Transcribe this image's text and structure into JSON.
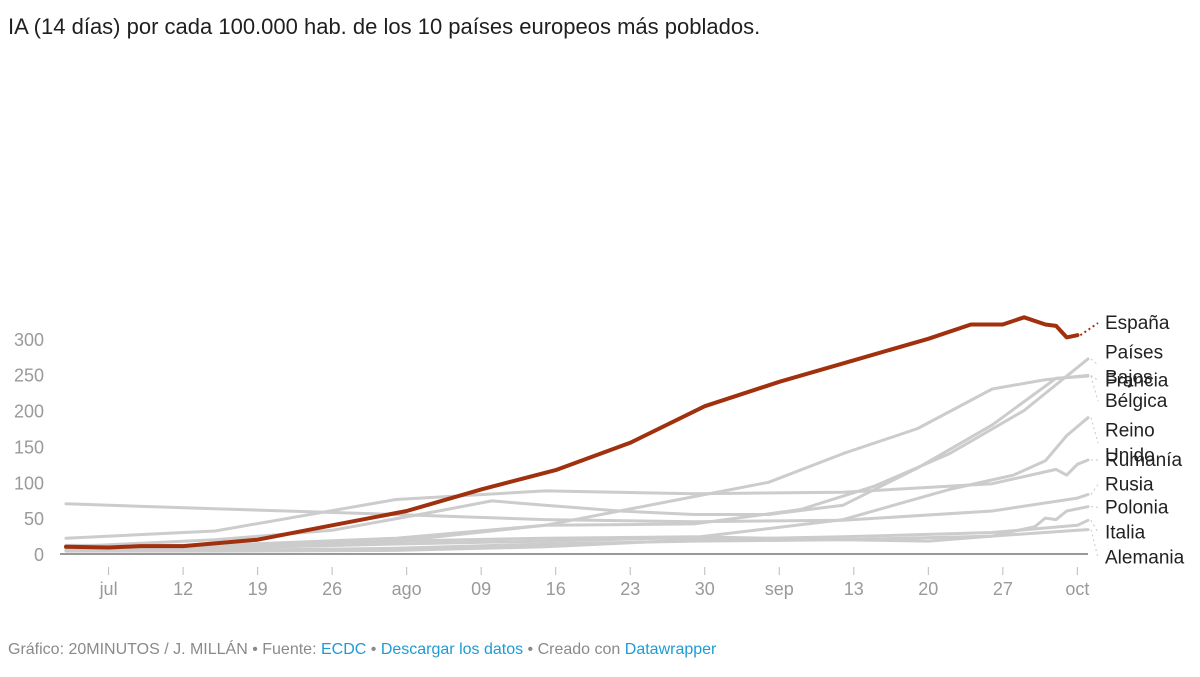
{
  "title": "IA (14 días) por cada 100.000 hab. de los 10 países europeos más poblados.",
  "footer": {
    "prefix": "Gráfico: 20MINUTOS / J. MILLÁN • Fuente: ",
    "source_link": "ECDC",
    "sep1": " • ",
    "download_link": "Descargar los datos",
    "sep2": " • Creado con ",
    "tool_link": "Datawrapper"
  },
  "colors": {
    "highlight": "#a0300e",
    "other": "#cccccc",
    "axis": "#9a9a9a",
    "link": "#1d9bd6"
  },
  "chart_data": {
    "type": "line",
    "title": "IA (14 días) por cada 100.000 hab. de los 10 países europeos más poblados.",
    "xlabel": "",
    "ylabel": "",
    "x_start": "2020-07-01",
    "x_end": "2020-10-05",
    "ylim": [
      0,
      330
    ],
    "yticks": [
      0,
      50,
      100,
      150,
      200,
      250,
      300
    ],
    "xticks": [
      {
        "date": "2020-07-05",
        "label": "jul"
      },
      {
        "date": "2020-07-12",
        "label": "12"
      },
      {
        "date": "2020-07-19",
        "label": "19"
      },
      {
        "date": "2020-07-26",
        "label": "26"
      },
      {
        "date": "2020-08-02",
        "label": "ago"
      },
      {
        "date": "2020-08-09",
        "label": "09"
      },
      {
        "date": "2020-08-16",
        "label": "16"
      },
      {
        "date": "2020-08-23",
        "label": "23"
      },
      {
        "date": "2020-08-30",
        "label": "30"
      },
      {
        "date": "2020-09-06",
        "label": "sep"
      },
      {
        "date": "2020-09-13",
        "label": "13"
      },
      {
        "date": "2020-09-20",
        "label": "20"
      },
      {
        "date": "2020-09-27",
        "label": "27"
      },
      {
        "date": "2020-10-04",
        "label": "oct"
      }
    ],
    "grid": false,
    "legend": "direct labels at right",
    "series": [
      {
        "name": "Alemania",
        "highlight": false,
        "points": [
          [
            "2020-07-01",
            6
          ],
          [
            "2020-07-15",
            5
          ],
          [
            "2020-08-01",
            8
          ],
          [
            "2020-08-15",
            14
          ],
          [
            "2020-08-29",
            18
          ],
          [
            "2020-09-12",
            20
          ],
          [
            "2020-09-26",
            25
          ],
          [
            "2020-10-04",
            33
          ],
          [
            "2020-10-05",
            34
          ]
        ]
      },
      {
        "name": "Italia",
        "highlight": false,
        "points": [
          [
            "2020-07-01",
            4
          ],
          [
            "2020-07-15",
            4
          ],
          [
            "2020-08-01",
            5
          ],
          [
            "2020-08-15",
            10
          ],
          [
            "2020-08-29",
            20
          ],
          [
            "2020-09-12",
            24
          ],
          [
            "2020-09-26",
            30
          ],
          [
            "2020-10-04",
            40
          ],
          [
            "2020-10-05",
            47
          ]
        ]
      },
      {
        "name": "Polonia",
        "highlight": false,
        "points": [
          [
            "2020-07-01",
            12
          ],
          [
            "2020-07-15",
            12
          ],
          [
            "2020-08-01",
            18
          ],
          [
            "2020-08-15",
            22
          ],
          [
            "2020-08-29",
            24
          ],
          [
            "2020-09-12",
            20
          ],
          [
            "2020-09-20",
            18
          ],
          [
            "2020-09-26",
            25
          ],
          [
            "2020-09-30",
            38
          ],
          [
            "2020-10-01",
            50
          ],
          [
            "2020-10-02",
            48
          ],
          [
            "2020-10-03",
            60
          ],
          [
            "2020-10-05",
            66
          ]
        ]
      },
      {
        "name": "Rusia",
        "highlight": false,
        "points": [
          [
            "2020-07-01",
            70
          ],
          [
            "2020-07-15",
            63
          ],
          [
            "2020-08-01",
            55
          ],
          [
            "2020-08-15",
            48
          ],
          [
            "2020-08-29",
            45
          ],
          [
            "2020-09-12",
            47
          ],
          [
            "2020-09-26",
            60
          ],
          [
            "2020-10-04",
            78
          ],
          [
            "2020-10-05",
            83
          ]
        ]
      },
      {
        "name": "Rumanía",
        "highlight": false,
        "points": [
          [
            "2020-07-01",
            22
          ],
          [
            "2020-07-15",
            32
          ],
          [
            "2020-08-01",
            76
          ],
          [
            "2020-08-15",
            88
          ],
          [
            "2020-08-29",
            84
          ],
          [
            "2020-09-12",
            86
          ],
          [
            "2020-09-26",
            98
          ],
          [
            "2020-10-02",
            118
          ],
          [
            "2020-10-03",
            110
          ],
          [
            "2020-10-04",
            125
          ],
          [
            "2020-10-05",
            131
          ]
        ]
      },
      {
        "name": "Reino Unido",
        "highlight": false,
        "points": [
          [
            "2020-07-01",
            10
          ],
          [
            "2020-07-15",
            8
          ],
          [
            "2020-08-01",
            14
          ],
          [
            "2020-08-15",
            18
          ],
          [
            "2020-08-29",
            23
          ],
          [
            "2020-09-12",
            48
          ],
          [
            "2020-09-22",
            90
          ],
          [
            "2020-09-28",
            110
          ],
          [
            "2020-10-01",
            130
          ],
          [
            "2020-10-03",
            165
          ],
          [
            "2020-10-05",
            190
          ]
        ]
      },
      {
        "name": "Bélgica",
        "highlight": false,
        "points": [
          [
            "2020-07-01",
            10
          ],
          [
            "2020-07-15",
            20
          ],
          [
            "2020-07-26",
            33
          ],
          [
            "2020-08-05",
            60
          ],
          [
            "2020-08-10",
            74
          ],
          [
            "2020-08-15",
            68
          ],
          [
            "2020-08-22",
            60
          ],
          [
            "2020-08-29",
            55
          ],
          [
            "2020-09-05",
            55
          ],
          [
            "2020-09-12",
            68
          ],
          [
            "2020-09-19",
            120
          ],
          [
            "2020-09-26",
            180
          ],
          [
            "2020-10-02",
            245
          ],
          [
            "2020-10-05",
            248
          ]
        ]
      },
      {
        "name": "Francia",
        "highlight": false,
        "points": [
          [
            "2020-07-01",
            6
          ],
          [
            "2020-07-15",
            10
          ],
          [
            "2020-08-01",
            18
          ],
          [
            "2020-08-15",
            40
          ],
          [
            "2020-08-29",
            80
          ],
          [
            "2020-09-05",
            100
          ],
          [
            "2020-09-12",
            140
          ],
          [
            "2020-09-19",
            175
          ],
          [
            "2020-09-26",
            230
          ],
          [
            "2020-10-01",
            243
          ],
          [
            "2020-10-05",
            249
          ]
        ]
      },
      {
        "name": "Países Bajos",
        "highlight": false,
        "points": [
          [
            "2020-07-01",
            6
          ],
          [
            "2020-07-15",
            12
          ],
          [
            "2020-08-01",
            22
          ],
          [
            "2020-08-15",
            40
          ],
          [
            "2020-08-29",
            42
          ],
          [
            "2020-09-08",
            62
          ],
          [
            "2020-09-15",
            95
          ],
          [
            "2020-09-22",
            140
          ],
          [
            "2020-09-29",
            200
          ],
          [
            "2020-10-05",
            272
          ]
        ]
      },
      {
        "name": "España",
        "highlight": true,
        "points": [
          [
            "2020-07-01",
            10
          ],
          [
            "2020-07-05",
            9
          ],
          [
            "2020-07-08",
            11
          ],
          [
            "2020-07-12",
            11
          ],
          [
            "2020-07-19",
            20
          ],
          [
            "2020-07-26",
            40
          ],
          [
            "2020-08-02",
            60
          ],
          [
            "2020-08-09",
            90
          ],
          [
            "2020-08-16",
            117
          ],
          [
            "2020-08-23",
            155
          ],
          [
            "2020-08-30",
            206
          ],
          [
            "2020-09-06",
            240
          ],
          [
            "2020-09-13",
            270
          ],
          [
            "2020-09-20",
            300
          ],
          [
            "2020-09-24",
            320
          ],
          [
            "2020-09-27",
            320
          ],
          [
            "2020-09-29",
            330
          ],
          [
            "2020-10-01",
            320
          ],
          [
            "2020-10-02",
            318
          ],
          [
            "2020-10-03",
            302
          ],
          [
            "2020-10-04",
            305
          ]
        ]
      }
    ],
    "end_labels": [
      {
        "series": "España",
        "lines": [
          "España"
        ],
        "y": 322
      },
      {
        "series": "Países Bajos",
        "lines": [
          "Países",
          "Bajos"
        ],
        "y": 281
      },
      {
        "series": "Francia",
        "lines": [
          "Francia"
        ],
        "y": 242
      },
      {
        "series": "Bélgica",
        "lines": [
          "Bélgica"
        ],
        "y": 213
      },
      {
        "series": "Reino Unido",
        "lines": [
          "Reino",
          "Unido"
        ],
        "y": 172
      },
      {
        "series": "Rumanía",
        "lines": [
          "Rumanía"
        ],
        "y": 131
      },
      {
        "series": "Rusia",
        "lines": [
          "Rusia"
        ],
        "y": 97
      },
      {
        "series": "Polonia",
        "lines": [
          "Polonia"
        ],
        "y": 65
      },
      {
        "series": "Italia",
        "lines": [
          "Italia"
        ],
        "y": 30
      },
      {
        "series": "Alemania",
        "lines": [
          "Alemania"
        ],
        "y": -5
      }
    ]
  }
}
